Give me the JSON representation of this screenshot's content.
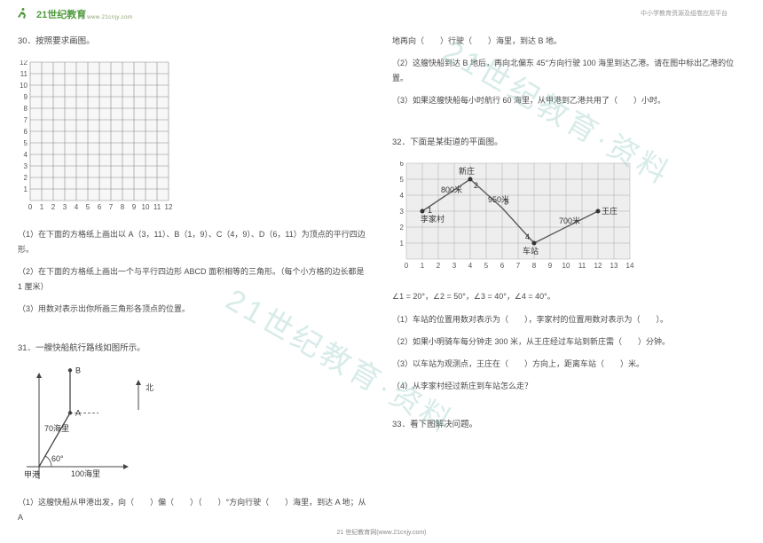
{
  "header": {
    "logo_text": "21世纪教育",
    "logo_sub": "www.21cnjy.com",
    "top_right": "中小学教育资源及组卷应用平台"
  },
  "col1": {
    "q30_title": "30．按照要求画图。",
    "q30_1": "（1）在下面的方格纸上画出以 A（3，11）、B（1，9）、C（4，9）、D（6，11）为顶点的平行四边形。",
    "q30_2": "（2）在下面的方格纸上画出一个与平行四边形 ABCD 面积相等的三角形。（每个小方格的边长都是 1 厘米）",
    "q30_3": "（3）用数对表示出你所画三角形各顶点的位置。",
    "q31_title": "31．一艘快船航行路线如图所示。",
    "q31_north": "北",
    "q31_labels": {
      "A": "A",
      "B": "B",
      "sixty": "60°",
      "d70": "70海里",
      "d100": "100海里",
      "port": "甲港"
    },
    "q31_1": "（1）这艘快船从甲港出发，向（　　）偏（　　）（　　）°方向行驶（　　）海里，到达 A 地；从 A"
  },
  "col2": {
    "q31_cont1": "地再向（　　）行驶（　　）海里，到达 B 地。",
    "q31_cont2": "（2）这艘快船到达 B 地后，再向北偏东 45°方向行驶 100 海里到达乙港。请在图中标出乙港的位置。",
    "q31_cont3": "（3）如果这艘快船每小时航行 60 海里，从甲港到乙港共用了（　　）小时。",
    "q32_title": "32．下面是某街道的平面图。",
    "q32_angles": "∠1 = 20°，∠2 = 50°，∠3 = 40°，∠4 = 40°。",
    "q32_1": "（1）车站的位置用数对表示为（　　），李家村的位置用数对表示为（　　）。",
    "q32_2": "（2）如果小明骑车每分钟走 300 米，从王庄经过车站到新庄需（　　）分钟。",
    "q32_3": "（3）以车站为观测点，王庄在（　　）方向上，距离车站（　　）米。",
    "q32_4": "（4）从李家村经过新庄到车站怎么走？",
    "q33_title": "33．看下图解决问题。",
    "map_labels": {
      "xinzhuang": "新庄",
      "lijia": "李家村",
      "wangzhuang": "王庄",
      "chezhan": "车站",
      "d800": "800米",
      "d950": "950米",
      "d700": "700米"
    }
  },
  "footer": "21 世纪教育网(www.21cnjy.com)",
  "grid": {
    "rows": 12,
    "cols": 12,
    "cell": 13,
    "line_color": "#888888",
    "bg": "#f7f7f7",
    "label_color": "#555555",
    "label_fontsize": 8
  },
  "map_grid": {
    "rows": 6,
    "cols": 14,
    "cell": 18,
    "line_color": "#aaaaaa",
    "path_color": "#5b5b5b",
    "label_fontsize": 8,
    "bg": "#eeeeee"
  },
  "nav": {
    "stroke": "#444444",
    "arrow_color": "#444444"
  },
  "watermark_text": "21世纪教育·资料"
}
